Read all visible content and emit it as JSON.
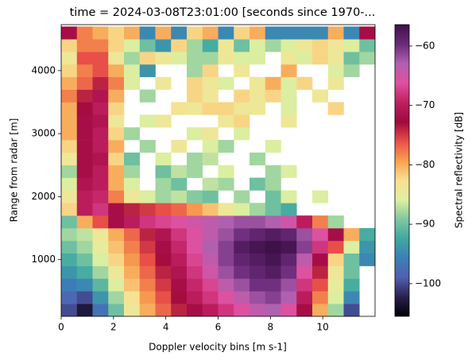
{
  "chart_data": {
    "type": "heatmap",
    "title": "time = 2024-03-08T23:01:00 [seconds since 1970-...",
    "xlabel": "Doppler velocity bins [m s-1]",
    "ylabel": "Range from radar [m]",
    "colorbar_label": "Spectral reflectivity [dB]",
    "xlim": [
      0,
      12
    ],
    "ylim": [
      100,
      4730
    ],
    "xticks": [
      0,
      2,
      4,
      6,
      8,
      10
    ],
    "yticks": [
      1000,
      2000,
      3000,
      4000
    ],
    "clim": [
      -105.5,
      -56.4
    ],
    "cticks": [
      {
        "value": -100,
        "label": "−100"
      },
      {
        "value": -90,
        "label": "−90"
      },
      {
        "value": -80,
        "label": "−80"
      },
      {
        "value": -70,
        "label": "−70"
      },
      {
        "value": -60,
        "label": "−60"
      }
    ],
    "colormap": [
      "#000000",
      "#2a2050",
      "#5060b0",
      "#3a80b8",
      "#40a8a0",
      "#80c8a0",
      "#e0f0a0",
      "#f8e090",
      "#f8a050",
      "#e85048",
      "#a00840",
      "#c02060",
      "#e050a0",
      "#b060b0",
      "#6a2a7a",
      "#40104a"
    ],
    "x_edges": [
      0,
      0.6,
      1.2,
      1.8,
      2.4,
      3,
      3.6,
      4.2,
      4.8,
      5.4,
      6,
      6.6,
      7.2,
      7.8,
      8.4,
      9,
      9.6,
      10.2,
      10.8,
      11.4,
      12
    ],
    "y_edges": [
      100,
      300,
      500,
      700,
      900,
      1100,
      1300,
      1500,
      1700,
      1900,
      2100,
      2300,
      2500,
      2700,
      2900,
      3100,
      3300,
      3500,
      3700,
      3900,
      4100,
      4300,
      4500,
      4700
    ],
    "z": [
      [
        -100,
        -103,
        -97,
        -90,
        -84,
        -80,
        -77,
        -74,
        -72,
        -70,
        -68,
        -66,
        -64,
        -63,
        -66,
        -72,
        -80,
        -88,
        -100,
        null
      ],
      [
        -98,
        -100,
        -94,
        -88,
        -83,
        -79,
        -76,
        -73,
        -70,
        -68,
        -66,
        -64,
        -62,
        -61,
        -63,
        -70,
        -78,
        -86,
        -95,
        null
      ],
      [
        -96,
        -95,
        -91,
        -86,
        -81,
        -78,
        -75,
        -72,
        -69,
        -67,
        -64,
        -62,
        -60,
        -60,
        -62,
        -68,
        -76,
        -85,
        -92,
        null
      ],
      [
        -94,
        -92,
        -88,
        -84,
        -80,
        -77,
        -74,
        -71,
        -68,
        -65,
        -62,
        -60,
        -59,
        -58,
        -60,
        -66,
        -74,
        -84,
        -90,
        null
      ],
      [
        -92,
        -90,
        -86,
        -82,
        -79,
        -76,
        -73,
        -70,
        -67,
        -64,
        -61,
        -59,
        -58,
        -57,
        -59,
        -64,
        -72,
        -82,
        -90,
        -95
      ],
      [
        -90,
        -88,
        -85,
        -81,
        -78,
        -75,
        -72,
        -69,
        -66,
        -63,
        -61,
        -58,
        -57,
        -56,
        -57,
        -61,
        -68,
        -76,
        -86,
        -94
      ],
      [
        -88,
        -87,
        -84,
        -80,
        -77,
        -74,
        -71,
        -68,
        -66,
        -64,
        -62,
        -60,
        -59,
        -58,
        -59,
        -62,
        -66,
        -72,
        -80,
        -92
      ],
      [
        -90,
        -80,
        -76,
        -72,
        -70,
        -68,
        -67,
        -66,
        -65,
        -64,
        -63,
        -62,
        -62,
        -63,
        -65,
        -70,
        -78,
        -88,
        null,
        null
      ],
      [
        -82,
        -70,
        -68,
        -72,
        -74,
        -75,
        -76,
        -77,
        -79,
        -81,
        -84,
        -86,
        -88,
        -90,
        -92,
        null,
        null,
        null,
        null,
        null
      ],
      [
        -84,
        -70,
        -69,
        -78,
        -84,
        -86,
        -88,
        -87,
        -89,
        -90,
        null,
        -88,
        null,
        -90,
        -86,
        null,
        -86,
        null,
        null,
        null
      ],
      [
        -86,
        -71,
        -70,
        -80,
        -86,
        null,
        -88,
        -90,
        null,
        -87,
        -88,
        null,
        -90,
        -88,
        null,
        null,
        null,
        null,
        null,
        null
      ],
      [
        -88,
        -72,
        -70,
        -80,
        -88,
        null,
        -90,
        -87,
        -88,
        null,
        -86,
        null,
        null,
        -88,
        -86,
        null,
        null,
        null,
        null,
        null
      ],
      [
        -84,
        -72,
        -71,
        -82,
        -90,
        null,
        -86,
        null,
        -88,
        -87,
        null,
        null,
        -88,
        null,
        null,
        null,
        null,
        null,
        null,
        null
      ],
      [
        -82,
        -72,
        -70,
        -80,
        null,
        -88,
        null,
        -84,
        null,
        -86,
        -88,
        null,
        null,
        -86,
        null,
        null,
        null,
        null,
        null,
        null
      ],
      [
        -80,
        -72,
        -70,
        -82,
        -88,
        null,
        null,
        null,
        -86,
        -84,
        null,
        -86,
        null,
        null,
        null,
        null,
        null,
        null,
        null,
        null
      ],
      [
        -80,
        -72,
        -71,
        -84,
        null,
        -86,
        -84,
        null,
        null,
        null,
        -84,
        -82,
        null,
        null,
        -84,
        null,
        null,
        null,
        null,
        null
      ],
      [
        -80,
        -73,
        -70,
        -82,
        null,
        null,
        null,
        -83,
        -84,
        -82,
        -82,
        -84,
        -84,
        null,
        -86,
        null,
        null,
        -82,
        null,
        null
      ],
      [
        -78,
        -74,
        -71,
        -80,
        null,
        -88,
        null,
        null,
        -82,
        -84,
        null,
        -82,
        -84,
        -82,
        -86,
        null,
        -84,
        null,
        null,
        null
      ],
      [
        -80,
        -77,
        -74,
        -78,
        -86,
        null,
        -84,
        null,
        -82,
        -84,
        -86,
        null,
        -84,
        -80,
        -86,
        -82,
        null,
        -84,
        null,
        null
      ],
      [
        -82,
        -78,
        -76,
        -80,
        -86,
        -94,
        null,
        null,
        -88,
        -82,
        null,
        -84,
        null,
        null,
        -80,
        null,
        null,
        -86,
        -88,
        null
      ],
      [
        -84,
        -76,
        -76,
        -84,
        -88,
        -82,
        -84,
        -86,
        -88,
        -88,
        -84,
        -86,
        -86,
        null,
        -84,
        -86,
        -82,
        -84,
        -90,
        -88
      ],
      [
        -82,
        -78,
        -78,
        -82,
        -86,
        -90,
        -94,
        -82,
        -88,
        -92,
        -84,
        -90,
        -86,
        -88,
        -86,
        -84,
        -82,
        -84,
        -86,
        -90
      ],
      [
        -72,
        -78,
        -80,
        -82,
        -80,
        -95,
        -80,
        -95,
        -82,
        -80,
        -95,
        -82,
        -80,
        -95,
        -95,
        -95,
        -95,
        -80,
        -95,
        -72
      ]
    ]
  }
}
